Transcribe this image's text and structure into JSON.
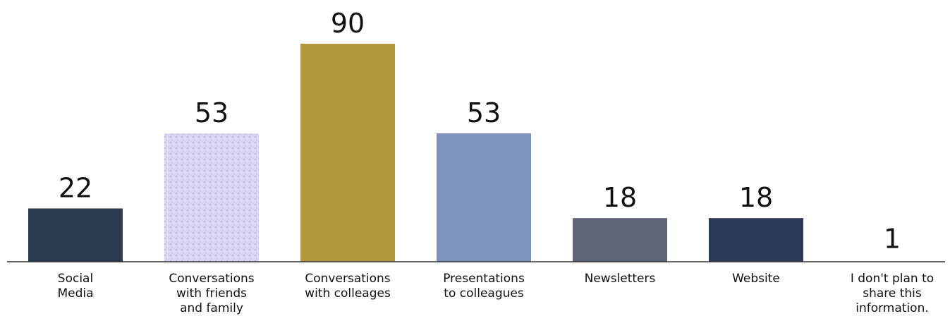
{
  "chart_data": {
    "type": "bar",
    "categories": [
      [
        "Social",
        "Media"
      ],
      [
        "Conversations",
        "with friends",
        "and family"
      ],
      [
        "Conversations",
        "with colleages"
      ],
      [
        "Presentations",
        "to colleagues"
      ],
      [
        "Newsletters"
      ],
      [
        "Website"
      ],
      [
        "I don't plan to",
        "share this",
        "information."
      ]
    ],
    "values": [
      22,
      53,
      90,
      53,
      18,
      18,
      1
    ],
    "data_labels": [
      "22",
      "53",
      "90",
      "53",
      "18",
      "18",
      "1"
    ],
    "colors": [
      "#2b3b4f",
      "#cfcaf0",
      "#b29a3c",
      "#7f93bf",
      "#5e6478",
      "#2c3a55",
      "#ffffff"
    ],
    "title": "",
    "xlabel": "",
    "ylabel": "",
    "ylim": [
      0,
      90
    ],
    "grid": false,
    "legend": "none",
    "baseline_color": "#333333"
  }
}
